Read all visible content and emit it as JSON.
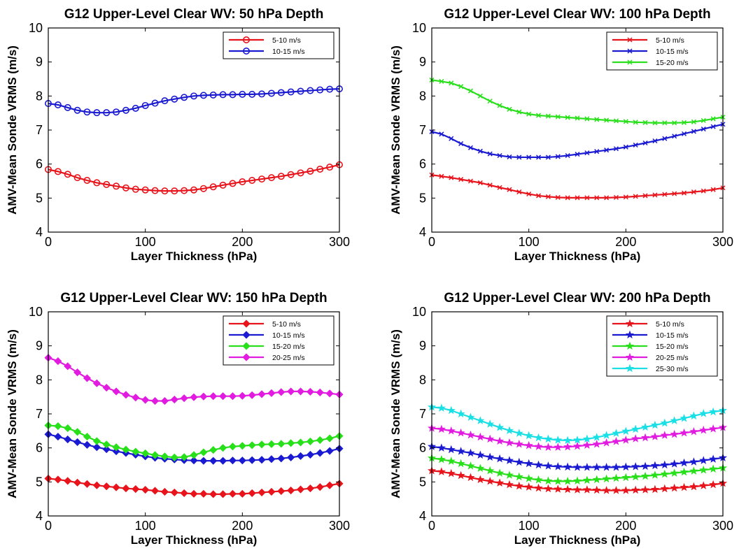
{
  "chart_data": [
    {
      "type": "line",
      "title": "G12 Upper-Level Clear WV: 50 hPa Depth",
      "xlabel": "Layer Thickness (hPa)",
      "ylabel": "AMV-Mean Sonde VRMS (m/s)",
      "xlim": [
        0,
        300
      ],
      "ylim": [
        4,
        10
      ],
      "xticks": [
        0,
        100,
        200,
        300
      ],
      "yticks": [
        4,
        5,
        6,
        7,
        8,
        9,
        10
      ],
      "x": [
        0,
        10,
        20,
        30,
        40,
        50,
        60,
        70,
        80,
        90,
        100,
        110,
        120,
        130,
        140,
        150,
        160,
        170,
        180,
        190,
        200,
        210,
        220,
        230,
        240,
        250,
        260,
        270,
        280,
        290,
        300
      ],
      "legend_location": "top-right",
      "grid": false,
      "series": [
        {
          "name": "5-10 m/s",
          "color": "#e8131b",
          "marker": "circle",
          "values": [
            5.84,
            5.78,
            5.7,
            5.6,
            5.52,
            5.45,
            5.4,
            5.35,
            5.3,
            5.26,
            5.24,
            5.22,
            5.21,
            5.21,
            5.22,
            5.24,
            5.28,
            5.33,
            5.38,
            5.43,
            5.48,
            5.52,
            5.56,
            5.6,
            5.64,
            5.69,
            5.74,
            5.79,
            5.85,
            5.91,
            5.98
          ]
        },
        {
          "name": "10-15 m/s",
          "color": "#1a1ad2",
          "marker": "circle",
          "values": [
            7.78,
            7.74,
            7.66,
            7.58,
            7.53,
            7.51,
            7.51,
            7.53,
            7.58,
            7.64,
            7.72,
            7.79,
            7.86,
            7.91,
            7.96,
            8.0,
            8.02,
            8.03,
            8.04,
            8.04,
            8.05,
            8.05,
            8.06,
            8.08,
            8.1,
            8.12,
            8.14,
            8.16,
            8.18,
            8.2,
            8.21
          ]
        }
      ]
    },
    {
      "type": "line",
      "title": "G12 Upper-Level Clear WV: 100 hPa Depth",
      "xlabel": "Layer Thickness (hPa)",
      "ylabel": "AMV-Mean Sonde VRMS (m/s)",
      "xlim": [
        0,
        300
      ],
      "ylim": [
        4,
        10
      ],
      "xticks": [
        0,
        100,
        200,
        300
      ],
      "yticks": [
        4,
        5,
        6,
        7,
        8,
        9,
        10
      ],
      "x": [
        0,
        10,
        20,
        30,
        40,
        50,
        60,
        70,
        80,
        90,
        100,
        110,
        120,
        130,
        140,
        150,
        160,
        170,
        180,
        190,
        200,
        210,
        220,
        230,
        240,
        250,
        260,
        270,
        280,
        290,
        300
      ],
      "legend_location": "top-right",
      "grid": false,
      "series": [
        {
          "name": "5-10 m/s",
          "color": "#e8131b",
          "marker": "x",
          "values": [
            5.68,
            5.64,
            5.6,
            5.55,
            5.5,
            5.45,
            5.38,
            5.31,
            5.25,
            5.18,
            5.12,
            5.07,
            5.04,
            5.02,
            5.01,
            5.01,
            5.01,
            5.01,
            5.01,
            5.02,
            5.03,
            5.05,
            5.07,
            5.09,
            5.11,
            5.13,
            5.15,
            5.18,
            5.21,
            5.25,
            5.3
          ]
        },
        {
          "name": "10-15 m/s",
          "color": "#1a1ad2",
          "marker": "x",
          "values": [
            6.95,
            6.88,
            6.75,
            6.6,
            6.48,
            6.38,
            6.3,
            6.25,
            6.21,
            6.2,
            6.2,
            6.2,
            6.2,
            6.22,
            6.25,
            6.29,
            6.33,
            6.37,
            6.41,
            6.45,
            6.5,
            6.56,
            6.62,
            6.68,
            6.75,
            6.82,
            6.89,
            6.96,
            7.03,
            7.1,
            7.17
          ]
        },
        {
          "name": "15-20 m/s",
          "color": "#28e01a",
          "marker": "x",
          "values": [
            8.47,
            8.43,
            8.38,
            8.28,
            8.15,
            8.0,
            7.85,
            7.72,
            7.61,
            7.53,
            7.47,
            7.43,
            7.41,
            7.39,
            7.37,
            7.35,
            7.33,
            7.31,
            7.29,
            7.27,
            7.25,
            7.23,
            7.22,
            7.21,
            7.21,
            7.21,
            7.22,
            7.24,
            7.28,
            7.33,
            7.38
          ]
        }
      ]
    },
    {
      "type": "line",
      "title": "G12 Upper-Level Clear WV: 150 hPa Depth",
      "xlabel": "Layer Thickness (hPa)",
      "ylabel": "AMV-Mean Sonde VRMS (m/s)",
      "xlim": [
        0,
        300
      ],
      "ylim": [
        4,
        10
      ],
      "xticks": [
        0,
        100,
        200,
        300
      ],
      "yticks": [
        4,
        5,
        6,
        7,
        8,
        9,
        10
      ],
      "x": [
        0,
        10,
        20,
        30,
        40,
        50,
        60,
        70,
        80,
        90,
        100,
        110,
        120,
        130,
        140,
        150,
        160,
        170,
        180,
        190,
        200,
        210,
        220,
        230,
        240,
        250,
        260,
        270,
        280,
        290,
        300
      ],
      "legend_location": "top-right",
      "grid": false,
      "series": [
        {
          "name": "5-10 m/s",
          "color": "#e8131b",
          "marker": "diamond",
          "values": [
            5.1,
            5.07,
            5.03,
            4.98,
            4.94,
            4.9,
            4.87,
            4.84,
            4.81,
            4.79,
            4.77,
            4.74,
            4.71,
            4.69,
            4.67,
            4.65,
            4.65,
            4.64,
            4.64,
            4.65,
            4.65,
            4.67,
            4.69,
            4.71,
            4.73,
            4.75,
            4.78,
            4.81,
            4.85,
            4.9,
            4.95
          ]
        },
        {
          "name": "10-15 m/s",
          "color": "#1a1ad2",
          "marker": "diamond",
          "values": [
            6.4,
            6.33,
            6.25,
            6.17,
            6.09,
            6.02,
            5.96,
            5.9,
            5.85,
            5.8,
            5.75,
            5.71,
            5.68,
            5.66,
            5.64,
            5.63,
            5.62,
            5.62,
            5.62,
            5.63,
            5.63,
            5.64,
            5.65,
            5.67,
            5.69,
            5.72,
            5.76,
            5.8,
            5.85,
            5.91,
            5.98
          ]
        },
        {
          "name": "15-20 m/s",
          "color": "#28e01a",
          "marker": "diamond",
          "values": [
            6.66,
            6.64,
            6.58,
            6.47,
            6.33,
            6.2,
            6.1,
            6.02,
            5.95,
            5.89,
            5.84,
            5.79,
            5.75,
            5.72,
            5.73,
            5.79,
            5.87,
            5.94,
            6.0,
            6.04,
            6.06,
            6.08,
            6.1,
            6.11,
            6.12,
            6.14,
            6.16,
            6.19,
            6.23,
            6.28,
            6.35
          ]
        },
        {
          "name": "20-25 m/s",
          "color": "#e21be0",
          "marker": "diamond",
          "values": [
            8.65,
            8.55,
            8.4,
            8.22,
            8.05,
            7.9,
            7.77,
            7.66,
            7.56,
            7.48,
            7.41,
            7.38,
            7.38,
            7.42,
            7.46,
            7.49,
            7.51,
            7.52,
            7.52,
            7.52,
            7.53,
            7.55,
            7.58,
            7.61,
            7.64,
            7.66,
            7.66,
            7.65,
            7.63,
            7.6,
            7.57
          ]
        }
      ]
    },
    {
      "type": "line",
      "title": "G12 Upper-Level Clear WV: 200 hPa Depth",
      "xlabel": "Layer Thickness (hPa)",
      "ylabel": "AMV-Mean Sonde VRMS (m/s)",
      "xlim": [
        0,
        300
      ],
      "ylim": [
        4,
        10
      ],
      "xticks": [
        0,
        100,
        200,
        300
      ],
      "yticks": [
        4,
        5,
        6,
        7,
        8,
        9,
        10
      ],
      "x": [
        0,
        10,
        20,
        30,
        40,
        50,
        60,
        70,
        80,
        90,
        100,
        110,
        120,
        130,
        140,
        150,
        160,
        170,
        180,
        190,
        200,
        210,
        220,
        230,
        240,
        250,
        260,
        270,
        280,
        290,
        300
      ],
      "legend_location": "top-right",
      "grid": false,
      "series": [
        {
          "name": "5-10 m/s",
          "color": "#e8131b",
          "marker": "star",
          "values": [
            5.33,
            5.3,
            5.25,
            5.19,
            5.13,
            5.07,
            5.02,
            4.97,
            4.92,
            4.88,
            4.85,
            4.82,
            4.8,
            4.79,
            4.78,
            4.77,
            4.77,
            4.76,
            4.75,
            4.75,
            4.75,
            4.76,
            4.77,
            4.78,
            4.8,
            4.82,
            4.84,
            4.86,
            4.89,
            4.92,
            4.96
          ]
        },
        {
          "name": "10-15 m/s",
          "color": "#1a1ad2",
          "marker": "star",
          "values": [
            6.04,
            6.0,
            5.95,
            5.9,
            5.85,
            5.79,
            5.73,
            5.68,
            5.63,
            5.58,
            5.54,
            5.5,
            5.47,
            5.45,
            5.44,
            5.43,
            5.43,
            5.43,
            5.43,
            5.43,
            5.44,
            5.45,
            5.46,
            5.48,
            5.5,
            5.53,
            5.56,
            5.59,
            5.63,
            5.67,
            5.71
          ]
        },
        {
          "name": "15-20 m/s",
          "color": "#28e01a",
          "marker": "star",
          "values": [
            5.7,
            5.66,
            5.61,
            5.54,
            5.47,
            5.4,
            5.33,
            5.26,
            5.2,
            5.15,
            5.1,
            5.06,
            5.03,
            5.02,
            5.02,
            5.03,
            5.05,
            5.07,
            5.09,
            5.11,
            5.13,
            5.15,
            5.17,
            5.2,
            5.23,
            5.26,
            5.29,
            5.32,
            5.35,
            5.38,
            5.41
          ]
        },
        {
          "name": "20-25 m/s",
          "color": "#e21be0",
          "marker": "star",
          "values": [
            6.58,
            6.55,
            6.5,
            6.44,
            6.38,
            6.32,
            6.26,
            6.2,
            6.15,
            6.11,
            6.07,
            6.04,
            6.02,
            6.02,
            6.03,
            6.05,
            6.08,
            6.11,
            6.15,
            6.19,
            6.23,
            6.27,
            6.3,
            6.33,
            6.37,
            6.4,
            6.44,
            6.48,
            6.52,
            6.56,
            6.6
          ]
        },
        {
          "name": "25-30 m/s",
          "color": "#1ae0e6",
          "marker": "star",
          "values": [
            7.2,
            7.17,
            7.1,
            7.0,
            6.9,
            6.8,
            6.7,
            6.6,
            6.51,
            6.43,
            6.36,
            6.3,
            6.26,
            6.23,
            6.22,
            6.23,
            6.26,
            6.31,
            6.37,
            6.43,
            6.49,
            6.55,
            6.61,
            6.67,
            6.73,
            6.8,
            6.87,
            6.94,
            7.01,
            7.06,
            7.1
          ]
        }
      ]
    }
  ]
}
